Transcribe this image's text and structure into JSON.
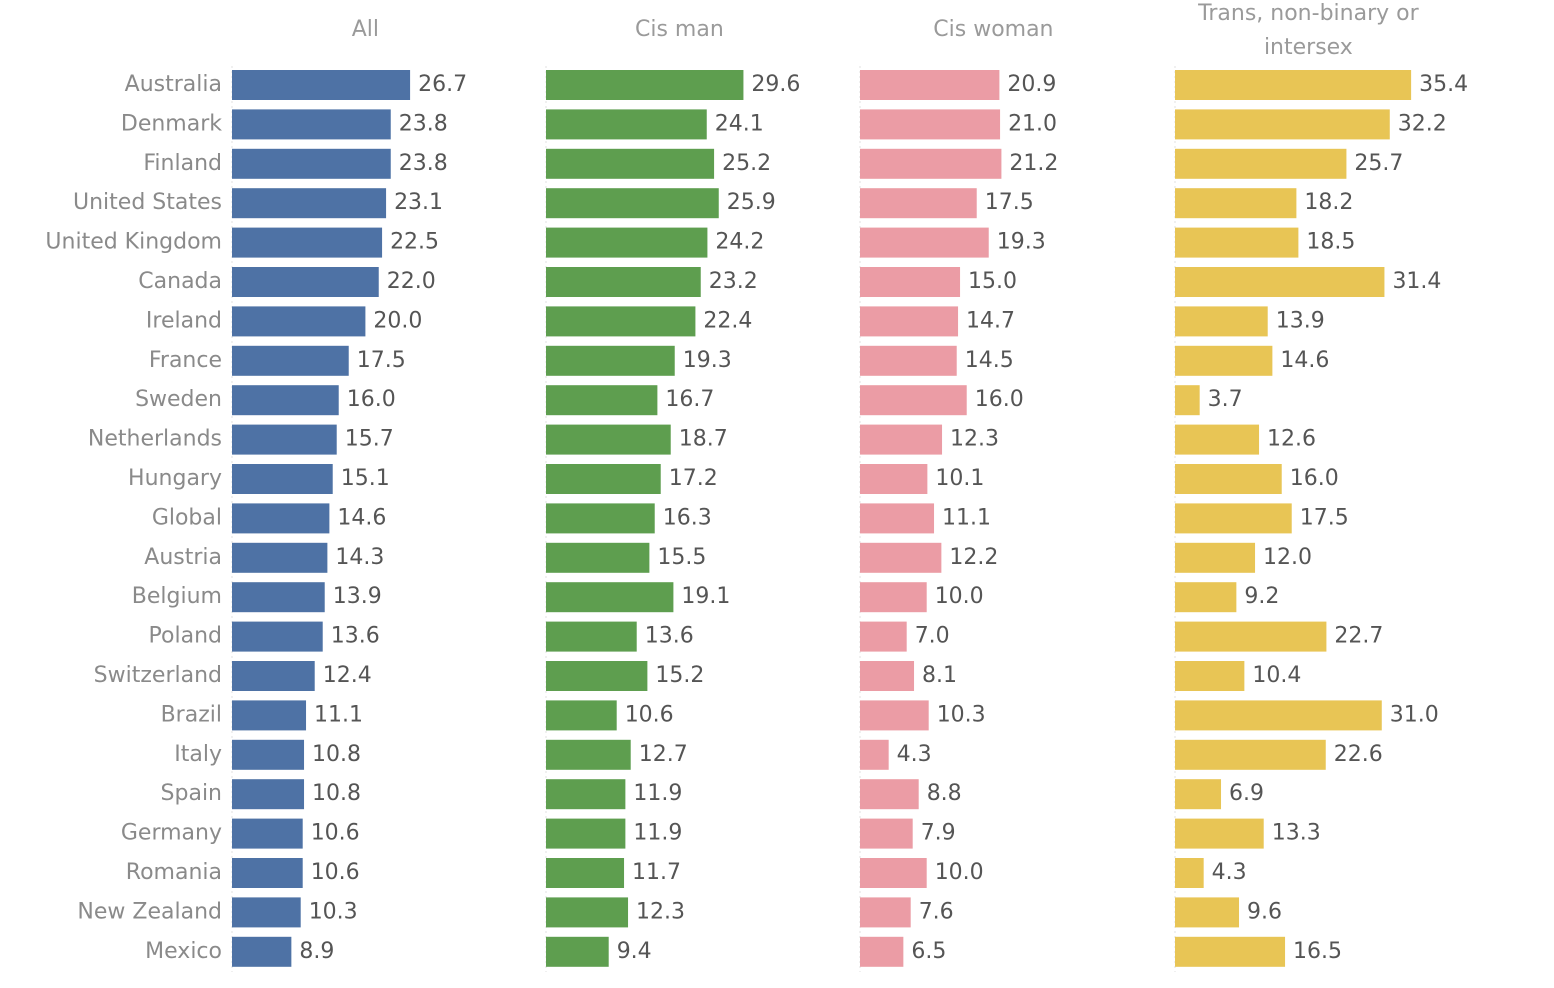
{
  "chart_data": {
    "type": "bar",
    "orientation": "horizontal",
    "categories": [
      "Australia",
      "Denmark",
      "Finland",
      "United States",
      "United Kingdom",
      "Canada",
      "Ireland",
      "France",
      "Sweden",
      "Netherlands",
      "Hungary",
      "Global",
      "Austria",
      "Belgium",
      "Poland",
      "Switzerland",
      "Brazil",
      "Italy",
      "Spain",
      "Germany",
      "Romania",
      "New Zealand",
      "Mexico"
    ],
    "series": [
      {
        "name": "All",
        "color": "#4e72a5",
        "values": [
          26.7,
          23.8,
          23.8,
          23.1,
          22.5,
          22.0,
          20.0,
          17.5,
          16.0,
          15.7,
          15.1,
          14.6,
          14.3,
          13.9,
          13.6,
          12.4,
          11.1,
          10.8,
          10.8,
          10.6,
          10.6,
          10.3,
          8.9
        ]
      },
      {
        "name": "Cis man",
        "color": "#5e9e4f",
        "values": [
          29.6,
          24.1,
          25.2,
          25.9,
          24.2,
          23.2,
          22.4,
          19.3,
          16.7,
          18.7,
          17.2,
          16.3,
          15.5,
          19.1,
          13.6,
          15.2,
          10.6,
          12.7,
          11.9,
          11.9,
          11.7,
          12.3,
          9.4
        ]
      },
      {
        "name": "Cis woman",
        "color": "#eb9ca5",
        "values": [
          20.9,
          21.0,
          21.2,
          17.5,
          19.3,
          15.0,
          14.7,
          14.5,
          16.0,
          12.3,
          10.1,
          11.1,
          12.2,
          10.0,
          7.0,
          8.1,
          10.3,
          4.3,
          8.8,
          7.9,
          10.0,
          7.6,
          6.5
        ]
      },
      {
        "name": "Trans, non-binary or intersex",
        "title_lines": [
          "Trans, non-binary or",
          "intersex"
        ],
        "color": "#e8c555",
        "values": [
          35.4,
          32.2,
          25.7,
          18.2,
          18.5,
          31.4,
          13.9,
          14.6,
          3.7,
          12.6,
          16.0,
          17.5,
          12.0,
          9.2,
          22.7,
          10.4,
          31.0,
          22.6,
          6.9,
          13.3,
          4.3,
          9.6,
          16.5
        ]
      }
    ],
    "xlim": [
      0,
      40
    ],
    "title": "",
    "xlabel": "",
    "ylabel": ""
  }
}
